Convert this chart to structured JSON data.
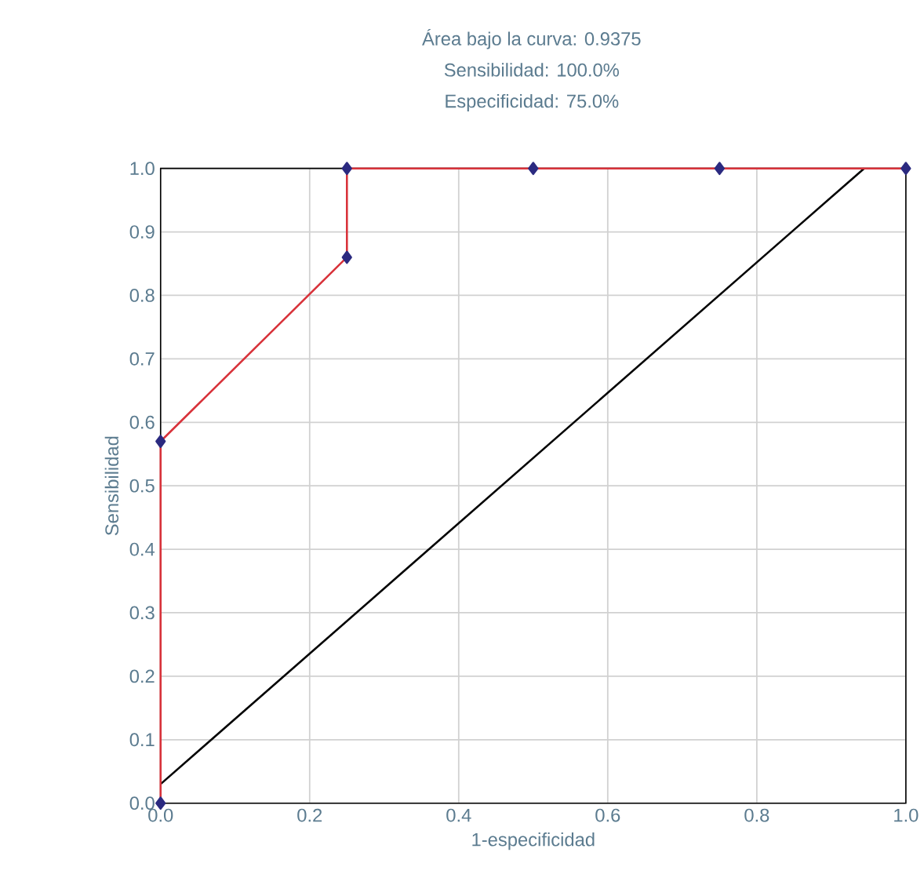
{
  "chart_data": {
    "type": "line",
    "title": "Área bajo la curva: 0.9375",
    "annotations": [
      "Sensibilidad: 100.0%",
      "Especificidad: 75.0%"
    ],
    "xlabel": "1-especificidad",
    "ylabel": "Sensibilidad",
    "series": [
      {
        "color": "#000000",
        "marker": "none",
        "x": [
          0,
          0.944
        ],
        "values": [
          0.03,
          1.0
        ]
      },
      {
        "color": "#d8323a",
        "marker": "none",
        "x": [
          0,
          0,
          0.25,
          0.25,
          0.5,
          0.75,
          1.0
        ],
        "values": [
          0,
          0.57,
          0.86,
          1.0,
          1.0,
          1.0,
          1.0
        ]
      },
      {
        "type": "scatter",
        "color": "#2b2a80",
        "marker": "diamond",
        "x": [
          0,
          0,
          0.25,
          0.25,
          0.5,
          0.75,
          1.0
        ],
        "values": [
          0,
          0.57,
          0.86,
          1.0,
          1.0,
          1.0,
          1.0
        ]
      }
    ],
    "xlim": [
      0,
      1
    ],
    "ylim": [
      0,
      1
    ],
    "xticks": [
      {
        "value": 0,
        "label": "0.0"
      },
      {
        "value": 0.2,
        "label": "0.2"
      },
      {
        "value": 0.4,
        "label": "0.4"
      },
      {
        "value": 0.6,
        "label": "0.6"
      },
      {
        "value": 0.8,
        "label": "0.8"
      },
      {
        "value": 1,
        "label": "1.0"
      }
    ],
    "yticks": [
      {
        "value": 0,
        "label": "0.0"
      },
      {
        "value": 0.1,
        "label": "0.1"
      },
      {
        "value": 0.2,
        "label": "0.2"
      },
      {
        "value": 0.3,
        "label": "0.3"
      },
      {
        "value": 0.4,
        "label": "0.4"
      },
      {
        "value": 0.5,
        "label": "0.5"
      },
      {
        "value": 0.6,
        "label": "0.6"
      },
      {
        "value": 0.7,
        "label": "0.7"
      },
      {
        "value": 0.8,
        "label": "0.8"
      },
      {
        "value": 0.9,
        "label": "0.9"
      },
      {
        "value": 1,
        "label": "1.0"
      }
    ],
    "grid": true,
    "line_style": "solid"
  }
}
